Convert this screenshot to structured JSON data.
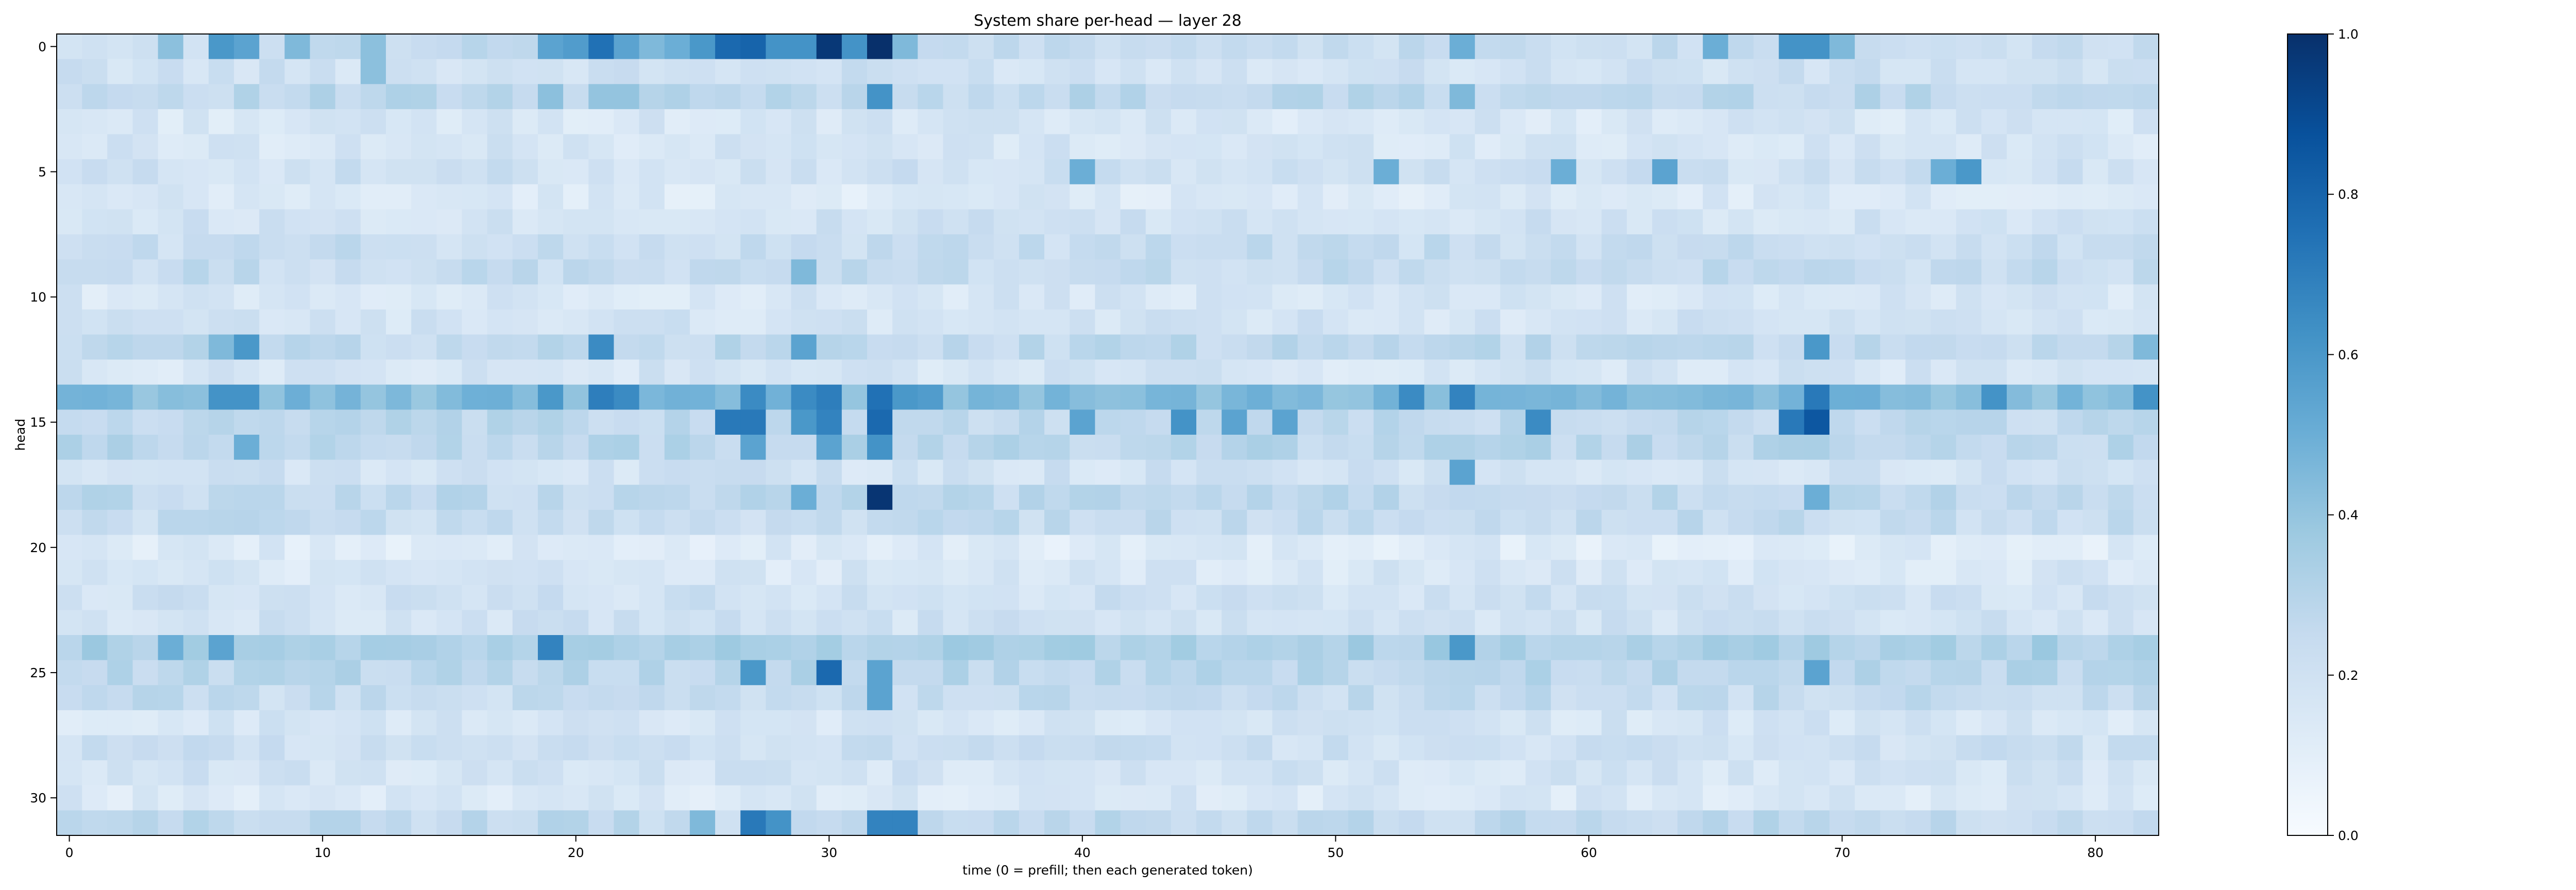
{
  "chart_data": {
    "type": "heatmap",
    "title": "System share per-head — layer 28",
    "xlabel": "time (0 = prefill; then each generated token)",
    "ylabel": "head",
    "xlim": [
      -0.5,
      82.5
    ],
    "ylim": [
      31.5,
      -0.5
    ],
    "x_ticks": [
      0,
      10,
      20,
      30,
      40,
      50,
      60,
      70,
      80
    ],
    "y_ticks": [
      0,
      5,
      10,
      15,
      20,
      25,
      30
    ],
    "n_cols": 83,
    "n_rows": 32,
    "colormap": "Blues",
    "vmin": 0.0,
    "vmax": 1.0,
    "colorbar_ticks": [
      0.0,
      0.2,
      0.4,
      0.6,
      0.8,
      1.0
    ],
    "grid": false,
    "row_base_values": [
      0.24,
      0.2,
      0.27,
      0.16,
      0.17,
      0.2,
      0.14,
      0.19,
      0.23,
      0.24,
      0.16,
      0.18,
      0.26,
      0.17,
      0.44,
      0.26,
      0.28,
      0.19,
      0.26,
      0.24,
      0.13,
      0.16,
      0.2,
      0.19,
      0.33,
      0.28,
      0.24,
      0.17,
      0.21,
      0.18,
      0.15,
      0.26
    ],
    "highlighted_cells": [
      {
        "head": 0,
        "time": 4,
        "value": 0.42
      },
      {
        "head": 0,
        "time": 6,
        "value": 0.6
      },
      {
        "head": 0,
        "time": 7,
        "value": 0.55
      },
      {
        "head": 0,
        "time": 9,
        "value": 0.45
      },
      {
        "head": 0,
        "time": 12,
        "value": 0.42
      },
      {
        "head": 0,
        "time": 19,
        "value": 0.55
      },
      {
        "head": 0,
        "time": 20,
        "value": 0.58
      },
      {
        "head": 0,
        "time": 21,
        "value": 0.75
      },
      {
        "head": 0,
        "time": 22,
        "value": 0.55
      },
      {
        "head": 0,
        "time": 23,
        "value": 0.45
      },
      {
        "head": 0,
        "time": 24,
        "value": 0.5
      },
      {
        "head": 0,
        "time": 25,
        "value": 0.6
      },
      {
        "head": 0,
        "time": 26,
        "value": 0.78
      },
      {
        "head": 0,
        "time": 27,
        "value": 0.8
      },
      {
        "head": 0,
        "time": 28,
        "value": 0.62
      },
      {
        "head": 0,
        "time": 29,
        "value": 0.62
      },
      {
        "head": 0,
        "time": 30,
        "value": 0.97
      },
      {
        "head": 0,
        "time": 31,
        "value": 0.62
      },
      {
        "head": 0,
        "time": 32,
        "value": 1.0
      },
      {
        "head": 0,
        "time": 33,
        "value": 0.45
      },
      {
        "head": 0,
        "time": 55,
        "value": 0.5
      },
      {
        "head": 0,
        "time": 65,
        "value": 0.5
      },
      {
        "head": 0,
        "time": 68,
        "value": 0.62
      },
      {
        "head": 0,
        "time": 69,
        "value": 0.62
      },
      {
        "head": 0,
        "time": 70,
        "value": 0.45
      },
      {
        "head": 1,
        "time": 12,
        "value": 0.42
      },
      {
        "head": 2,
        "time": 32,
        "value": 0.62
      },
      {
        "head": 2,
        "time": 21,
        "value": 0.4
      },
      {
        "head": 2,
        "time": 22,
        "value": 0.4
      },
      {
        "head": 2,
        "time": 19,
        "value": 0.42
      },
      {
        "head": 2,
        "time": 55,
        "value": 0.45
      },
      {
        "head": 5,
        "time": 40,
        "value": 0.5
      },
      {
        "head": 5,
        "time": 52,
        "value": 0.5
      },
      {
        "head": 5,
        "time": 59,
        "value": 0.5
      },
      {
        "head": 5,
        "time": 63,
        "value": 0.55
      },
      {
        "head": 5,
        "time": 74,
        "value": 0.5
      },
      {
        "head": 5,
        "time": 75,
        "value": 0.6
      },
      {
        "head": 9,
        "time": 29,
        "value": 0.45
      },
      {
        "head": 12,
        "time": 7,
        "value": 0.6
      },
      {
        "head": 12,
        "time": 6,
        "value": 0.45
      },
      {
        "head": 12,
        "time": 21,
        "value": 0.65
      },
      {
        "head": 12,
        "time": 29,
        "value": 0.55
      },
      {
        "head": 12,
        "time": 69,
        "value": 0.6
      },
      {
        "head": 12,
        "time": 82,
        "value": 0.45
      },
      {
        "head": 14,
        "time": 6,
        "value": 0.62
      },
      {
        "head": 14,
        "time": 7,
        "value": 0.62
      },
      {
        "head": 14,
        "time": 19,
        "value": 0.6
      },
      {
        "head": 14,
        "time": 21,
        "value": 0.7
      },
      {
        "head": 14,
        "time": 22,
        "value": 0.65
      },
      {
        "head": 14,
        "time": 27,
        "value": 0.65
      },
      {
        "head": 14,
        "time": 29,
        "value": 0.65
      },
      {
        "head": 14,
        "time": 30,
        "value": 0.7
      },
      {
        "head": 14,
        "time": 32,
        "value": 0.75
      },
      {
        "head": 14,
        "time": 33,
        "value": 0.6
      },
      {
        "head": 14,
        "time": 34,
        "value": 0.58
      },
      {
        "head": 14,
        "time": 53,
        "value": 0.65
      },
      {
        "head": 14,
        "time": 55,
        "value": 0.68
      },
      {
        "head": 14,
        "time": 69,
        "value": 0.72
      },
      {
        "head": 14,
        "time": 76,
        "value": 0.62
      },
      {
        "head": 14,
        "time": 82,
        "value": 0.62
      },
      {
        "head": 15,
        "time": 26,
        "value": 0.72
      },
      {
        "head": 15,
        "time": 27,
        "value": 0.72
      },
      {
        "head": 15,
        "time": 29,
        "value": 0.6
      },
      {
        "head": 15,
        "time": 30,
        "value": 0.68
      },
      {
        "head": 15,
        "time": 32,
        "value": 0.78
      },
      {
        "head": 15,
        "time": 40,
        "value": 0.55
      },
      {
        "head": 15,
        "time": 44,
        "value": 0.62
      },
      {
        "head": 15,
        "time": 46,
        "value": 0.55
      },
      {
        "head": 15,
        "time": 48,
        "value": 0.55
      },
      {
        "head": 15,
        "time": 58,
        "value": 0.65
      },
      {
        "head": 15,
        "time": 68,
        "value": 0.72
      },
      {
        "head": 15,
        "time": 69,
        "value": 0.85
      },
      {
        "head": 16,
        "time": 7,
        "value": 0.5
      },
      {
        "head": 16,
        "time": 27,
        "value": 0.55
      },
      {
        "head": 16,
        "time": 30,
        "value": 0.55
      },
      {
        "head": 16,
        "time": 32,
        "value": 0.62
      },
      {
        "head": 17,
        "time": 55,
        "value": 0.55
      },
      {
        "head": 18,
        "time": 32,
        "value": 0.98
      },
      {
        "head": 18,
        "time": 29,
        "value": 0.5
      },
      {
        "head": 18,
        "time": 69,
        "value": 0.5
      },
      {
        "head": 24,
        "time": 19,
        "value": 0.68
      },
      {
        "head": 24,
        "time": 4,
        "value": 0.5
      },
      {
        "head": 24,
        "time": 6,
        "value": 0.55
      },
      {
        "head": 24,
        "time": 55,
        "value": 0.6
      },
      {
        "head": 25,
        "time": 30,
        "value": 0.78
      },
      {
        "head": 25,
        "time": 27,
        "value": 0.6
      },
      {
        "head": 25,
        "time": 32,
        "value": 0.55
      },
      {
        "head": 25,
        "time": 69,
        "value": 0.55
      },
      {
        "head": 26,
        "time": 32,
        "value": 0.55
      },
      {
        "head": 31,
        "time": 27,
        "value": 0.72
      },
      {
        "head": 31,
        "time": 28,
        "value": 0.62
      },
      {
        "head": 31,
        "time": 32,
        "value": 0.68
      },
      {
        "head": 31,
        "time": 33,
        "value": 0.68
      },
      {
        "head": 31,
        "time": 25,
        "value": 0.45
      }
    ]
  }
}
